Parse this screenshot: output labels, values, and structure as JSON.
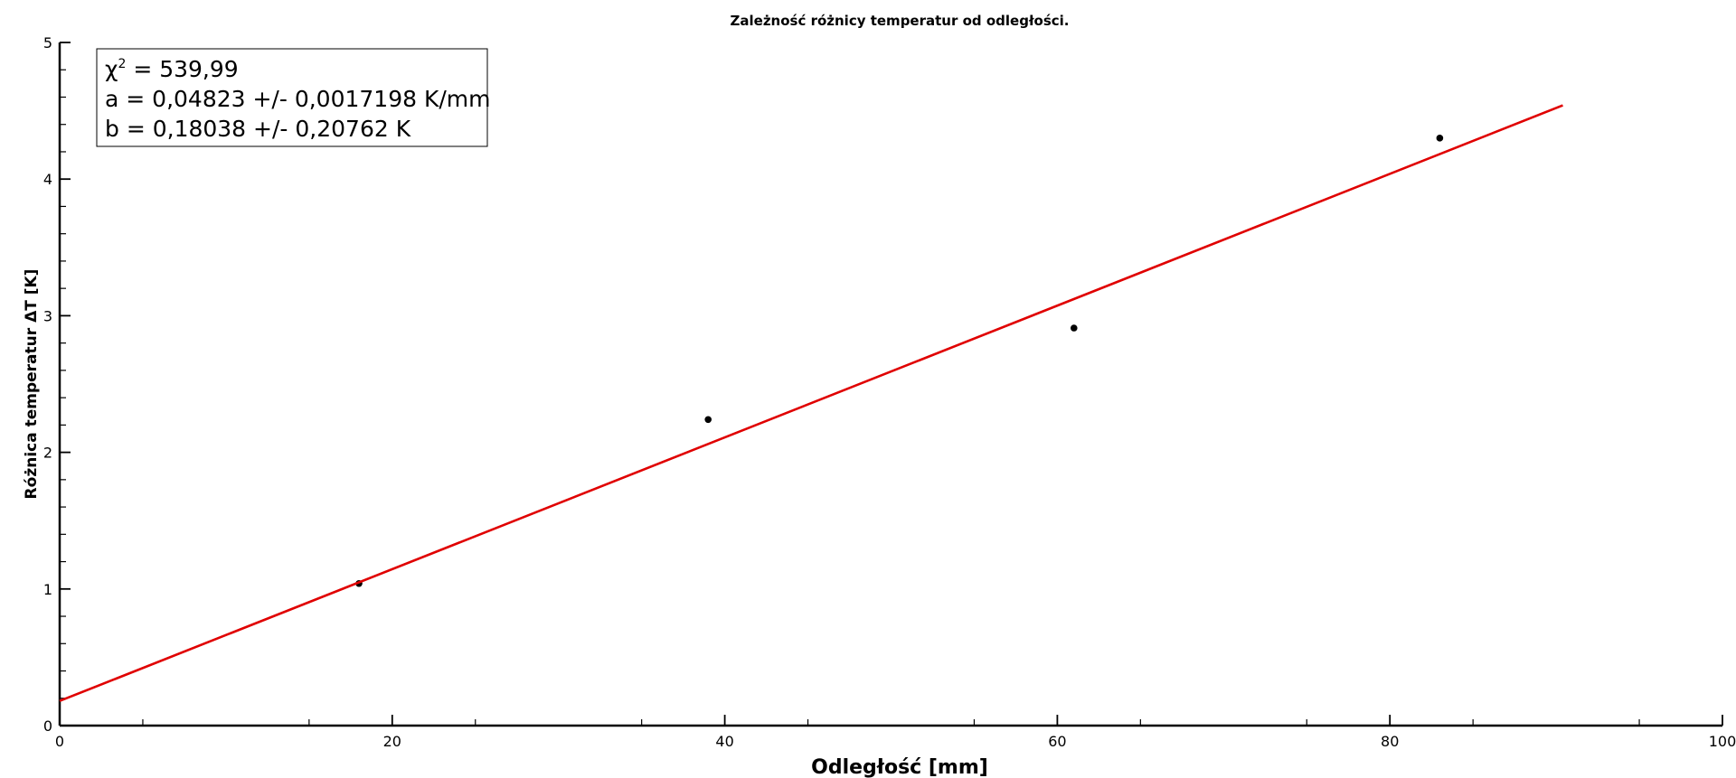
{
  "chart_data": {
    "type": "scatter",
    "title": "Zależność różnicy temperatur od odległości.",
    "xlabel": "Odległość [mm]",
    "ylabel": "Różnica temperatur ΔT [K]",
    "xlim": [
      0,
      100
    ],
    "ylim": [
      0,
      5
    ],
    "x_ticks": [
      "0",
      "20",
      "40",
      "60",
      "80",
      "100"
    ],
    "y_ticks": [
      "0",
      "1",
      "2",
      "3",
      "4",
      "5"
    ],
    "grid": false,
    "series": [
      {
        "type": "scatter",
        "x": [
          18,
          39,
          61,
          83
        ],
        "y": [
          1.04,
          2.24,
          2.91,
          4.3
        ],
        "color": "#000000"
      },
      {
        "type": "line",
        "x": [
          0,
          90.4
        ],
        "y": [
          0.18038,
          4.54
        ],
        "color": "#e00000"
      }
    ],
    "annotation": {
      "chi_prefix": "χ",
      "chi_sup": "2",
      "chi_value": " = 539,99",
      "line_a": "a = 0,04823 +/- 0,0017198 K/mm",
      "line_b": "b = 0,18038 +/- 0,20762 K"
    }
  }
}
